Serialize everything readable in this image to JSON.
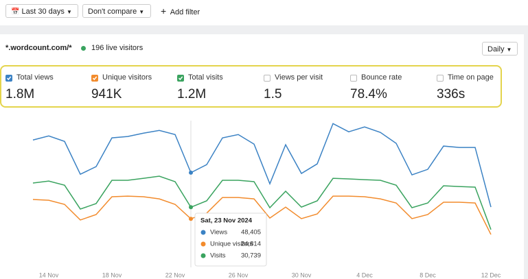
{
  "toolbar": {
    "date_range": "Last 30 days",
    "compare": "Don't compare",
    "filter": "Add filter"
  },
  "header": {
    "site": "*.wordcount.com/*",
    "live": "196 live visitors",
    "interval": "Daily"
  },
  "metrics": [
    {
      "label": "Total views",
      "value": "1.8M",
      "checked": true,
      "color": "#3b82c4"
    },
    {
      "label": "Unique visitors",
      "value": "941K",
      "checked": true,
      "color": "#f28b2c"
    },
    {
      "label": "Total visits",
      "value": "1.2M",
      "checked": true,
      "color": "#3aa35f"
    },
    {
      "label": "Views per visit",
      "value": "1.5",
      "checked": false
    },
    {
      "label": "Bounce rate",
      "value": "78.4%",
      "checked": false
    },
    {
      "label": "Time on page",
      "value": "336s",
      "checked": false
    }
  ],
  "chart_data": {
    "type": "line",
    "categories": [
      null,
      "14 Nov",
      null,
      null,
      null,
      "18 Nov",
      null,
      null,
      null,
      "22 Nov",
      null,
      null,
      null,
      "26 Nov",
      null,
      null,
      null,
      "30 Nov",
      null,
      null,
      null,
      "4 Dec",
      null,
      null,
      null,
      "8 Dec",
      null,
      null,
      null,
      "12 Dec"
    ],
    "ylim": [
      0,
      75000
    ],
    "tooltip_title": "Sat, 23 Nov 2024",
    "series": [
      {
        "name": "Views",
        "color": "#3b82c4",
        "values": [
          65100,
          67200,
          64400,
          47600,
          51500,
          66200,
          66900,
          68600,
          70000,
          67900,
          48405,
          52500,
          66200,
          67900,
          63000,
          42700,
          62700,
          48000,
          52900,
          73500,
          69300,
          71800,
          69000,
          63400,
          47300,
          50100,
          62000,
          61300,
          61300,
          30800
        ],
        "value_labels": [
          null,
          null,
          null,
          null,
          null,
          null,
          null,
          null,
          null,
          null,
          "48,405",
          null,
          null,
          null,
          null,
          null,
          null,
          null,
          null,
          null,
          null,
          null,
          null,
          null,
          null,
          null,
          null,
          null,
          null,
          null
        ]
      },
      {
        "name": "Unique visitors",
        "color": "#f28b2c",
        "values": [
          34700,
          34300,
          32200,
          24200,
          27000,
          36100,
          36400,
          36100,
          35000,
          32200,
          24814,
          27700,
          35700,
          35700,
          35000,
          25200,
          30800,
          24900,
          27300,
          36400,
          36400,
          36100,
          35000,
          32900,
          24900,
          27000,
          33300,
          33300,
          32900,
          16800
        ],
        "value_labels": [
          null,
          null,
          null,
          null,
          null,
          null,
          null,
          null,
          null,
          null,
          "24,814",
          null,
          null,
          null,
          null,
          null,
          null,
          null,
          null,
          null,
          null,
          null,
          null,
          null,
          null,
          null,
          null,
          null,
          null,
          null
        ]
      },
      {
        "name": "Visits",
        "color": "#3aa35f",
        "values": [
          43100,
          44100,
          42000,
          29800,
          32600,
          44500,
          44500,
          45500,
          46600,
          43800,
          30739,
          34000,
          44500,
          44500,
          43800,
          30500,
          38900,
          30800,
          34000,
          45500,
          45200,
          44800,
          44500,
          42000,
          30500,
          32900,
          41700,
          41300,
          41000,
          19300
        ],
        "value_labels": [
          null,
          null,
          null,
          null,
          null,
          null,
          null,
          null,
          null,
          null,
          "30,739",
          null,
          null,
          null,
          null,
          null,
          null,
          null,
          null,
          null,
          null,
          null,
          null,
          null,
          null,
          null,
          null,
          null,
          null,
          null
        ]
      }
    ]
  }
}
